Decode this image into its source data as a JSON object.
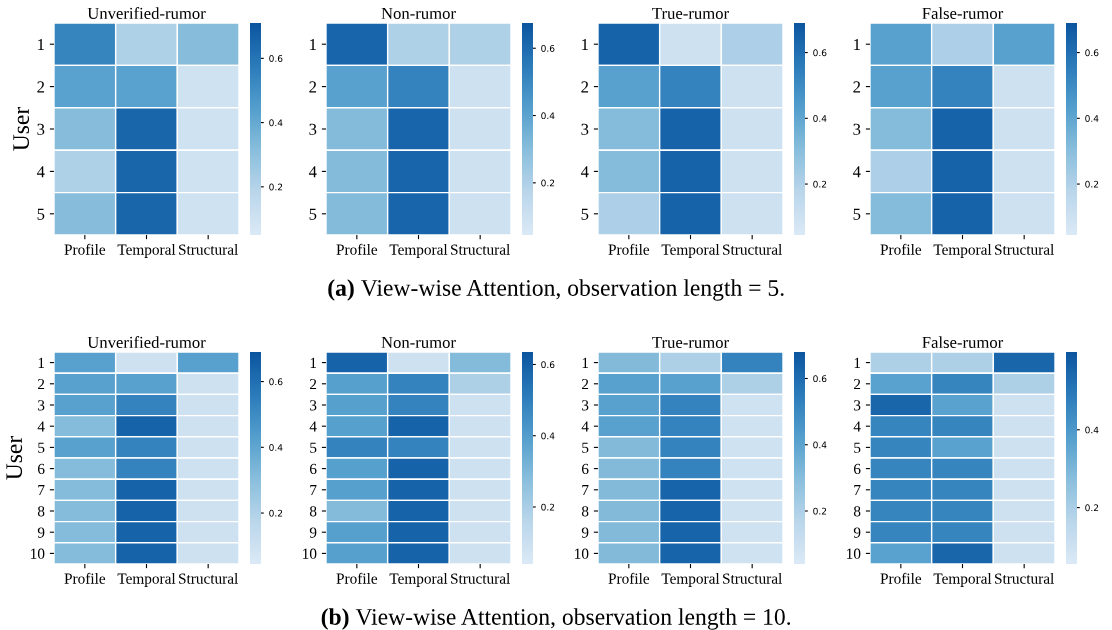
{
  "chart_data": [
    {
      "type": "heatmap",
      "title": "Unverified-rumor",
      "ylabel": "User",
      "categories": [
        "Profile",
        "Temporal",
        "Structural"
      ],
      "y_categories": [
        "1",
        "2",
        "3",
        "4",
        "5"
      ],
      "clim": [
        0.05,
        0.71
      ],
      "cticks": [
        0.2,
        0.4,
        0.6
      ],
      "colors": [
        "#dbe9f6",
        "#bad6eb",
        "#89bedc",
        "#539ecd",
        "#2b7bba",
        "#0b559f"
      ],
      "cells": [
        [
          0.54,
          0.21,
          0.32
        ],
        [
          0.43,
          0.43,
          0.1
        ],
        [
          0.32,
          0.65,
          0.1
        ],
        [
          0.21,
          0.65,
          0.1
        ],
        [
          0.32,
          0.65,
          0.1
        ]
      ]
    },
    {
      "type": "heatmap",
      "title": "Non-rumor",
      "categories": [
        "Profile",
        "Temporal",
        "Structural"
      ],
      "y_categories": [
        "1",
        "2",
        "3",
        "4",
        "5"
      ],
      "clim": [
        0.045,
        0.675
      ],
      "cticks": [
        0.2,
        0.4,
        0.6
      ],
      "colors": [
        "#dbe9f6",
        "#bad6eb",
        "#89bedc",
        "#539ecd",
        "#2b7bba",
        "#0b559f"
      ],
      "cells": [
        [
          0.62,
          0.2,
          0.2
        ],
        [
          0.41,
          0.52,
          0.1
        ],
        [
          0.31,
          0.62,
          0.1
        ],
        [
          0.31,
          0.62,
          0.1
        ],
        [
          0.31,
          0.62,
          0.1
        ]
      ]
    },
    {
      "type": "heatmap",
      "title": "True-rumor",
      "categories": [
        "Profile",
        "Temporal",
        "Structural"
      ],
      "y_categories": [
        "1",
        "2",
        "3",
        "4",
        "5"
      ],
      "clim": [
        0.045,
        0.69
      ],
      "cticks": [
        0.2,
        0.4,
        0.6
      ],
      "colors": [
        "#dbe9f6",
        "#bad6eb",
        "#89bedc",
        "#539ecd",
        "#2b7bba",
        "#0b559f"
      ],
      "cells": [
        [
          0.64,
          0.1,
          0.21
        ],
        [
          0.42,
          0.53,
          0.1
        ],
        [
          0.31,
          0.64,
          0.1
        ],
        [
          0.31,
          0.64,
          0.1
        ],
        [
          0.21,
          0.64,
          0.1
        ]
      ]
    },
    {
      "type": "heatmap",
      "title": "False-rumor",
      "categories": [
        "Profile",
        "Temporal",
        "Structural"
      ],
      "y_categories": [
        "1",
        "2",
        "3",
        "4",
        "5"
      ],
      "clim": [
        0.045,
        0.69
      ],
      "cticks": [
        0.2,
        0.4,
        0.6
      ],
      "colors": [
        "#dbe9f6",
        "#bad6eb",
        "#89bedc",
        "#539ecd",
        "#2b7bba",
        "#0b559f"
      ],
      "cells": [
        [
          0.42,
          0.21,
          0.42
        ],
        [
          0.42,
          0.53,
          0.1
        ],
        [
          0.31,
          0.64,
          0.1
        ],
        [
          0.21,
          0.64,
          0.1
        ],
        [
          0.31,
          0.64,
          0.1
        ]
      ],
      "annotations": [
        "(a) View-wise Attention, observation length = 5."
      ]
    },
    {
      "type": "heatmap",
      "title": "Unverified-rumor",
      "ylabel": "User",
      "categories": [
        "Profile",
        "Temporal",
        "Structural"
      ],
      "y_categories": [
        "1",
        "2",
        "3",
        "4",
        "5",
        "6",
        "7",
        "8",
        "9",
        "10"
      ],
      "clim": [
        0.045,
        0.69
      ],
      "cticks": [
        0.2,
        0.4,
        0.6
      ],
      "colors": [
        "#dbe9f6",
        "#bad6eb",
        "#89bedc",
        "#539ecd",
        "#2b7bba",
        "#0b559f"
      ],
      "cells": [
        [
          0.42,
          0.1,
          0.42
        ],
        [
          0.42,
          0.42,
          0.1
        ],
        [
          0.42,
          0.53,
          0.1
        ],
        [
          0.31,
          0.64,
          0.1
        ],
        [
          0.42,
          0.53,
          0.1
        ],
        [
          0.31,
          0.53,
          0.1
        ],
        [
          0.31,
          0.64,
          0.1
        ],
        [
          0.31,
          0.64,
          0.1
        ],
        [
          0.31,
          0.64,
          0.1
        ],
        [
          0.31,
          0.64,
          0.1
        ]
      ]
    },
    {
      "type": "heatmap",
      "title": "Non-rumor",
      "categories": [
        "Profile",
        "Temporal",
        "Structural"
      ],
      "y_categories": [
        "1",
        "2",
        "3",
        "4",
        "5",
        "6",
        "7",
        "8",
        "9",
        "10"
      ],
      "clim": [
        0.04,
        0.635
      ],
      "cticks": [
        0.2,
        0.4,
        0.6
      ],
      "colors": [
        "#dbe9f6",
        "#bad6eb",
        "#89bedc",
        "#539ecd",
        "#2b7bba",
        "#0b559f"
      ],
      "cells": [
        [
          0.59,
          0.09,
          0.29
        ],
        [
          0.39,
          0.49,
          0.19
        ],
        [
          0.39,
          0.49,
          0.09
        ],
        [
          0.39,
          0.59,
          0.09
        ],
        [
          0.49,
          0.49,
          0.09
        ],
        [
          0.39,
          0.59,
          0.09
        ],
        [
          0.39,
          0.59,
          0.09
        ],
        [
          0.29,
          0.59,
          0.09
        ],
        [
          0.39,
          0.59,
          0.09
        ],
        [
          0.39,
          0.59,
          0.09
        ]
      ]
    },
    {
      "type": "heatmap",
      "title": "True-rumor",
      "categories": [
        "Profile",
        "Temporal",
        "Structural"
      ],
      "y_categories": [
        "1",
        "2",
        "3",
        "4",
        "5",
        "6",
        "7",
        "8",
        "9",
        "10"
      ],
      "clim": [
        0.04,
        0.68
      ],
      "cticks": [
        0.2,
        0.4,
        0.6
      ],
      "colors": [
        "#dbe9f6",
        "#bad6eb",
        "#89bedc",
        "#539ecd",
        "#2b7bba",
        "#0b559f"
      ],
      "cells": [
        [
          0.31,
          0.2,
          0.52
        ],
        [
          0.41,
          0.41,
          0.2
        ],
        [
          0.41,
          0.52,
          0.09
        ],
        [
          0.41,
          0.52,
          0.09
        ],
        [
          0.31,
          0.52,
          0.09
        ],
        [
          0.31,
          0.52,
          0.09
        ],
        [
          0.31,
          0.63,
          0.09
        ],
        [
          0.31,
          0.63,
          0.09
        ],
        [
          0.31,
          0.63,
          0.09
        ],
        [
          0.31,
          0.63,
          0.09
        ]
      ]
    },
    {
      "type": "heatmap",
      "title": "False-rumor",
      "categories": [
        "Profile",
        "Temporal",
        "Structural"
      ],
      "y_categories": [
        "1",
        "2",
        "3",
        "4",
        "5",
        "6",
        "7",
        "8",
        "9",
        "10"
      ],
      "clim": [
        0.055,
        0.6
      ],
      "cticks": [
        0.2,
        0.4
      ],
      "colors": [
        "#dbe9f6",
        "#bad6eb",
        "#89bedc",
        "#539ecd",
        "#2b7bba",
        "#0b559f"
      ],
      "cells": [
        [
          0.19,
          0.19,
          0.55
        ],
        [
          0.37,
          0.46,
          0.19
        ],
        [
          0.55,
          0.37,
          0.1
        ],
        [
          0.46,
          0.46,
          0.1
        ],
        [
          0.46,
          0.37,
          0.1
        ],
        [
          0.46,
          0.46,
          0.1
        ],
        [
          0.46,
          0.46,
          0.1
        ],
        [
          0.46,
          0.46,
          0.1
        ],
        [
          0.46,
          0.46,
          0.1
        ],
        [
          0.37,
          0.55,
          0.1
        ]
      ],
      "annotations": [
        "(b) View-wise Attention, observation length = 10."
      ]
    }
  ]
}
